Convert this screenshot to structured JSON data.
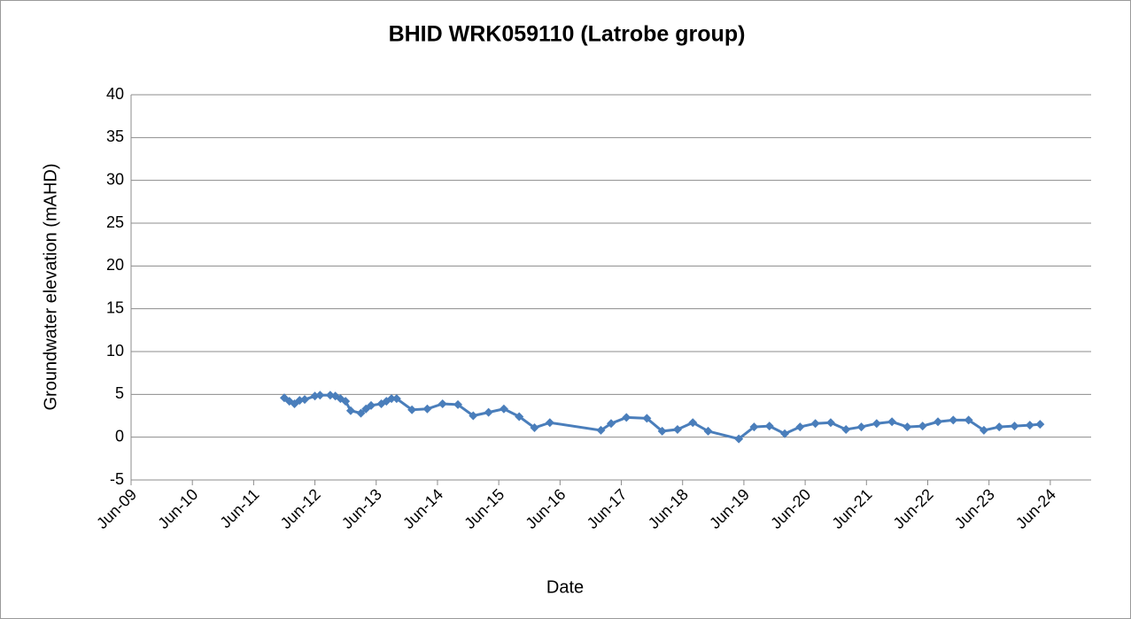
{
  "chart_data": {
    "type": "line",
    "title": "BHID WRK059110 (Latrobe group)",
    "x_label": "Date",
    "y_label": "Groundwater elevation (mAHD)",
    "x": [
      "2011-12",
      "2012-01",
      "2012-02",
      "2012-03",
      "2012-04",
      "2012-06",
      "2012-07",
      "2012-09",
      "2012-10",
      "2012-11",
      "2012-12",
      "2013-01",
      "2013-03",
      "2013-04",
      "2013-05",
      "2013-07",
      "2013-08",
      "2013-09",
      "2013-10",
      "2014-01",
      "2014-04",
      "2014-07",
      "2014-10",
      "2015-01",
      "2015-04",
      "2015-07",
      "2015-10",
      "2016-01",
      "2016-04",
      "2017-02",
      "2017-04",
      "2017-07",
      "2017-11",
      "2018-02",
      "2018-05",
      "2018-08",
      "2018-11",
      "2019-05",
      "2019-08",
      "2019-11",
      "2020-02",
      "2020-05",
      "2020-08",
      "2020-11",
      "2021-02",
      "2021-05",
      "2021-08",
      "2021-11",
      "2022-02",
      "2022-05",
      "2022-08",
      "2022-11",
      "2023-02",
      "2023-05",
      "2023-08",
      "2023-11",
      "2024-02",
      "2024-04"
    ],
    "series": [
      {
        "name": "WRK059110",
        "color": "#4a7ebb",
        "values": [
          4.6,
          4.2,
          3.9,
          4.3,
          4.4,
          4.8,
          4.9,
          4.9,
          4.8,
          4.5,
          4.2,
          3.1,
          2.8,
          3.3,
          3.7,
          3.9,
          4.2,
          4.5,
          4.5,
          3.2,
          3.3,
          3.9,
          3.8,
          2.5,
          2.9,
          3.3,
          2.4,
          1.1,
          1.7,
          0.8,
          1.6,
          2.3,
          2.2,
          0.7,
          0.9,
          1.7,
          0.7,
          -0.2,
          1.2,
          1.3,
          0.4,
          1.2,
          1.6,
          1.7,
          0.9,
          1.2,
          1.6,
          1.8,
          1.2,
          1.3,
          1.8,
          2.0,
          2.0,
          0.8,
          1.2,
          1.3,
          1.4,
          1.5
        ]
      }
    ],
    "xlim": [
      "2009-06",
      "2025-02"
    ],
    "xticks": [
      {
        "value": "2009-06",
        "label": "Jun-09"
      },
      {
        "value": "2010-06",
        "label": "Jun-10"
      },
      {
        "value": "2011-06",
        "label": "Jun-11"
      },
      {
        "value": "2012-06",
        "label": "Jun-12"
      },
      {
        "value": "2013-06",
        "label": "Jun-13"
      },
      {
        "value": "2014-06",
        "label": "Jun-14"
      },
      {
        "value": "2015-06",
        "label": "Jun-15"
      },
      {
        "value": "2016-06",
        "label": "Jun-16"
      },
      {
        "value": "2017-06",
        "label": "Jun-17"
      },
      {
        "value": "2018-06",
        "label": "Jun-18"
      },
      {
        "value": "2019-06",
        "label": "Jun-19"
      },
      {
        "value": "2020-06",
        "label": "Jun-20"
      },
      {
        "value": "2021-06",
        "label": "Jun-21"
      },
      {
        "value": "2022-06",
        "label": "Jun-22"
      },
      {
        "value": "2023-06",
        "label": "Jun-23"
      },
      {
        "value": "2024-06",
        "label": "Jun-24"
      }
    ],
    "ylim": [
      -5,
      40
    ],
    "yticks": [
      -5,
      0,
      5,
      10,
      15,
      20,
      25,
      30,
      35,
      40
    ],
    "grid": true
  }
}
